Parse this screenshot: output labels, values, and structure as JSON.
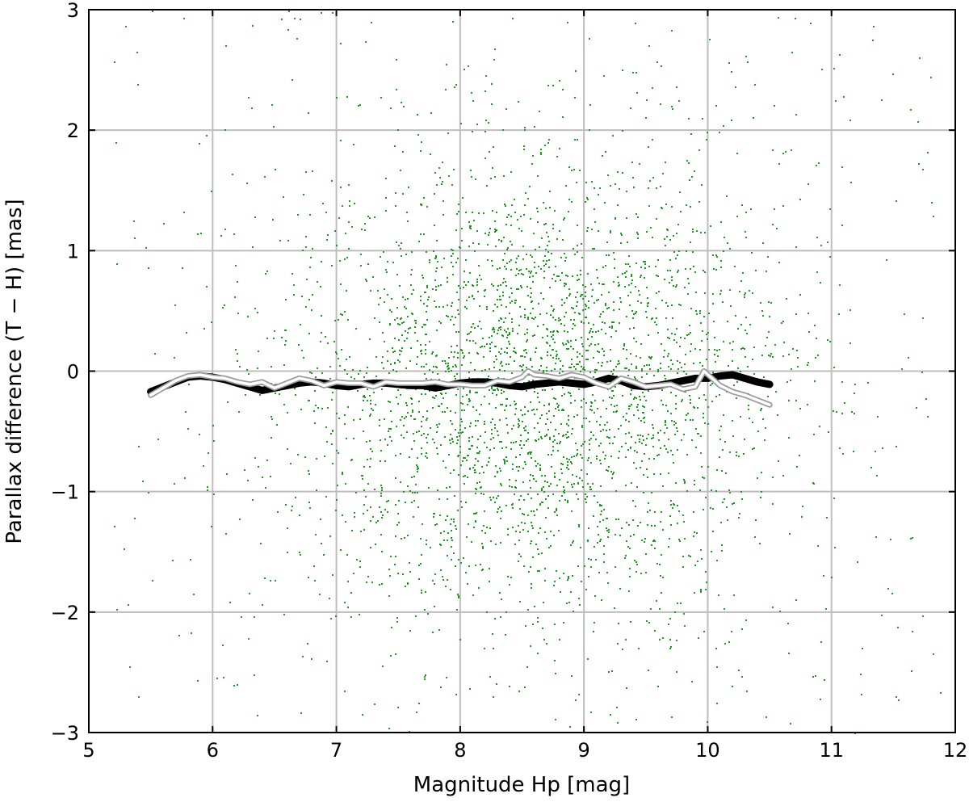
{
  "chart_data": {
    "type": "scatter",
    "title": "",
    "xlabel": "Magnitude Hp [mag]",
    "ylabel": "Parallax difference (T − H) [mas]",
    "xlim": [
      5,
      12
    ],
    "ylim": [
      -3,
      3
    ],
    "grid": true,
    "x_ticks": [
      5,
      6,
      7,
      8,
      9,
      10,
      11,
      12
    ],
    "x_tick_labels": [
      "5",
      "6",
      "7",
      "8",
      "9",
      "10",
      "11",
      "12"
    ],
    "y_ticks": [
      -3,
      -2,
      -1,
      0,
      1,
      2,
      3
    ],
    "y_tick_labels": [
      "−3",
      "−2",
      "−1",
      "0",
      "1",
      "2",
      "3"
    ],
    "colors": {
      "scatter": "#1a9e1a",
      "median_line": "#000000",
      "mean_line_outline": "#9a9a9a",
      "mean_line_fill": "#ffffff",
      "grid": "#bdbdbd"
    },
    "scatter_distribution": {
      "x_center": 8.6,
      "x_sigma": 1.0,
      "y_center": -0.1,
      "y_sigma": 0.95,
      "x_range": [
        5.2,
        11.9
      ],
      "y_range": [
        -3,
        3
      ],
      "point_count": 24000
    },
    "series": [
      {
        "style": "thick-black",
        "x": [
          5.5,
          5.6,
          5.7,
          5.8,
          5.9,
          6.0,
          6.1,
          6.2,
          6.3,
          6.4,
          6.5,
          6.6,
          6.7,
          6.8,
          6.9,
          7.0,
          7.1,
          7.2,
          7.3,
          7.4,
          7.5,
          7.6,
          7.7,
          7.8,
          7.9,
          8.0,
          8.1,
          8.2,
          8.3,
          8.4,
          8.5,
          8.6,
          8.7,
          8.8,
          8.9,
          9.0,
          9.1,
          9.2,
          9.3,
          9.4,
          9.5,
          9.6,
          9.7,
          9.8,
          9.9,
          10.0,
          10.1,
          10.2,
          10.3,
          10.4,
          10.5
        ],
        "y": [
          -0.17,
          -0.13,
          -0.09,
          -0.05,
          -0.04,
          -0.05,
          -0.07,
          -0.1,
          -0.13,
          -0.16,
          -0.14,
          -0.12,
          -0.1,
          -0.09,
          -0.1,
          -0.12,
          -0.13,
          -0.11,
          -0.1,
          -0.1,
          -0.11,
          -0.12,
          -0.12,
          -0.14,
          -0.12,
          -0.1,
          -0.09,
          -0.09,
          -0.1,
          -0.12,
          -0.13,
          -0.11,
          -0.1,
          -0.09,
          -0.1,
          -0.11,
          -0.09,
          -0.06,
          -0.08,
          -0.12,
          -0.13,
          -0.12,
          -0.1,
          -0.08,
          -0.06,
          -0.06,
          -0.04,
          -0.03,
          -0.06,
          -0.09,
          -0.11
        ]
      },
      {
        "style": "white-outlined",
        "x": [
          5.5,
          5.6,
          5.7,
          5.8,
          5.9,
          6.0,
          6.1,
          6.2,
          6.3,
          6.4,
          6.5,
          6.6,
          6.7,
          6.8,
          6.9,
          7.0,
          7.1,
          7.2,
          7.3,
          7.4,
          7.5,
          7.6,
          7.7,
          7.8,
          7.9,
          8.0,
          8.1,
          8.2,
          8.3,
          8.4,
          8.5,
          8.55,
          8.6,
          8.7,
          8.8,
          8.9,
          9.0,
          9.1,
          9.2,
          9.3,
          9.4,
          9.5,
          9.6,
          9.7,
          9.8,
          9.9,
          9.97,
          10.1,
          10.2,
          10.3,
          10.4,
          10.5
        ],
        "y": [
          -0.2,
          -0.14,
          -0.08,
          -0.04,
          -0.03,
          -0.05,
          -0.06,
          -0.09,
          -0.11,
          -0.09,
          -0.14,
          -0.1,
          -0.06,
          -0.08,
          -0.12,
          -0.09,
          -0.1,
          -0.1,
          -0.13,
          -0.09,
          -0.1,
          -0.1,
          -0.1,
          -0.09,
          -0.11,
          -0.11,
          -0.12,
          -0.12,
          -0.08,
          -0.09,
          -0.05,
          0.0,
          -0.03,
          -0.04,
          -0.06,
          -0.03,
          -0.05,
          -0.1,
          -0.13,
          -0.06,
          -0.09,
          -0.13,
          -0.12,
          -0.11,
          -0.15,
          -0.13,
          -0.0,
          -0.12,
          -0.17,
          -0.2,
          -0.24,
          -0.28
        ]
      }
    ]
  }
}
